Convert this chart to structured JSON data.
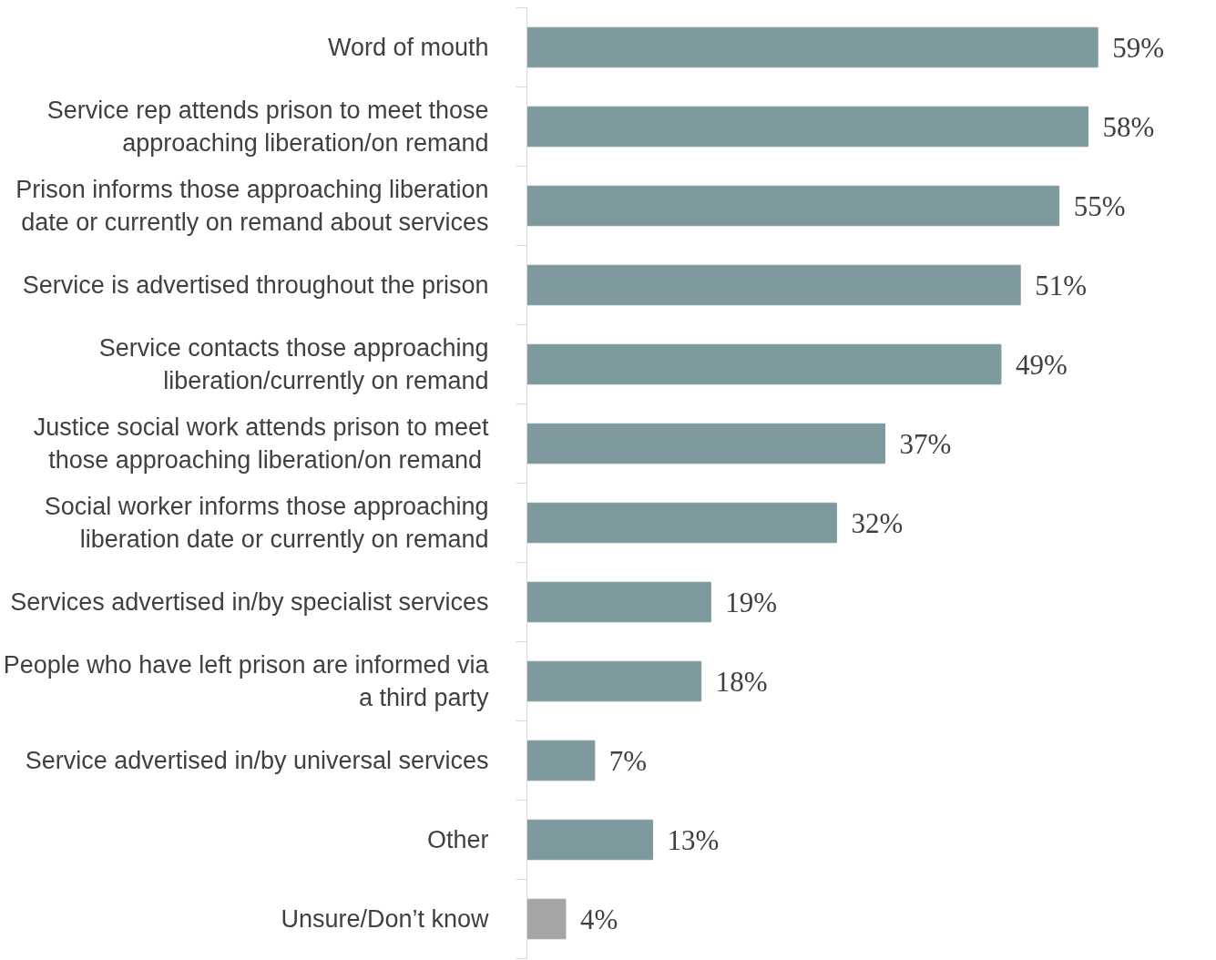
{
  "chart_data": {
    "type": "bar",
    "orientation": "horizontal",
    "data_labels": true,
    "categories": [
      "Word of mouth",
      "Service rep attends prison to meet those approaching liberation/on remand",
      "Prison informs those approaching liberation date or currently on remand about services",
      "Service is advertised throughout the prison",
      "Service contacts those approaching liberation/currently on remand",
      "Justice social work attends prison to meet those  approaching liberation/on remand",
      "Social worker informs those approaching liberation date or currently on remand",
      "Services advertised in/by specialist services",
      "People who have left prison are informed via a third party",
      "Service advertised in/by universal services",
      "Other",
      "Unsure/Don’t know"
    ],
    "values": [
      59,
      58,
      55,
      51,
      49,
      37,
      32,
      19,
      18,
      7,
      13,
      4
    ],
    "value_labels": [
      "59%",
      "58%",
      "55%",
      "51%",
      "49%",
      "37%",
      "32%",
      "19%",
      "18%",
      "7%",
      "13%",
      "4%"
    ],
    "colors": [
      "#7f9a9e",
      "#7f9a9e",
      "#7f9a9e",
      "#7f9a9e",
      "#7f9a9e",
      "#7f9a9e",
      "#7f9a9e",
      "#7f9a9e",
      "#7f9a9e",
      "#7f9a9e",
      "#7f9a9e",
      "#a5a5a5"
    ]
  }
}
